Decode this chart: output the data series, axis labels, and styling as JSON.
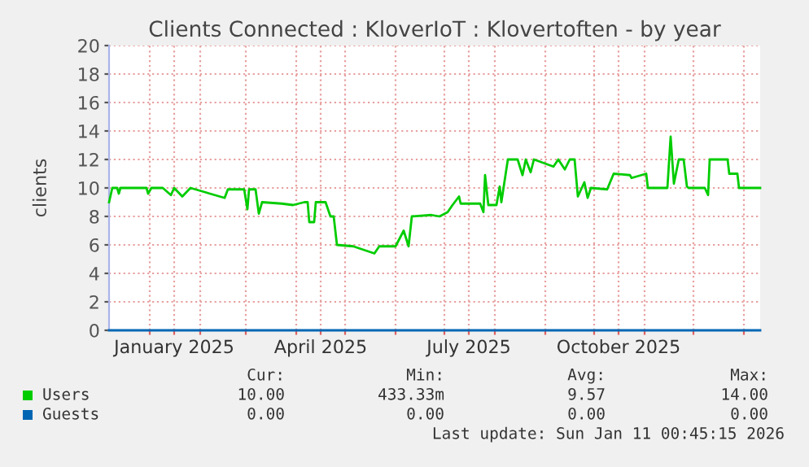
{
  "chart_data": {
    "type": "line",
    "title": "Clients Connected : KloverIoT : Klovertoften - by year",
    "ylabel": "clients",
    "x": [
      "2024-12-07",
      "2024-12-09",
      "2024-12-12",
      "2024-12-13",
      "2024-12-14",
      "2024-12-30",
      "2024-12-31",
      "2025-01-02",
      "2025-01-09",
      "2025-01-14",
      "2025-01-16",
      "2025-01-21",
      "2025-01-26",
      "2025-02-16",
      "2025-02-18",
      "2025-02-28",
      "2025-03-02",
      "2025-03-03",
      "2025-03-07",
      "2025-03-09",
      "2025-03-11",
      "2025-03-23",
      "2025-03-30",
      "2025-04-06",
      "2025-04-08",
      "2025-04-09",
      "2025-04-12",
      "2025-04-13",
      "2025-04-19",
      "2025-04-22",
      "2025-04-24",
      "2025-04-26",
      "2025-05-06",
      "2025-05-19",
      "2025-05-22",
      "2025-06-01",
      "2025-06-06",
      "2025-06-09",
      "2025-06-11",
      "2025-06-23",
      "2025-06-28",
      "2025-07-03",
      "2025-07-06",
      "2025-07-10",
      "2025-07-11",
      "2025-07-23",
      "2025-07-25",
      "2025-07-26",
      "2025-07-28",
      "2025-08-02",
      "2025-08-04",
      "2025-08-05",
      "2025-08-09",
      "2025-08-15",
      "2025-08-18",
      "2025-08-20",
      "2025-08-23",
      "2025-08-25",
      "2025-09-06",
      "2025-09-09",
      "2025-09-13",
      "2025-09-16",
      "2025-09-19",
      "2025-09-21",
      "2025-09-23",
      "2025-09-25",
      "2025-09-27",
      "2025-09-29",
      "2025-10-09",
      "2025-10-13",
      "2025-10-23",
      "2025-10-24",
      "2025-11-02",
      "2025-11-03",
      "2025-11-15",
      "2025-11-17",
      "2025-11-19",
      "2025-11-22",
      "2025-11-25",
      "2025-11-27",
      "2025-11-28",
      "2025-12-08",
      "2025-12-10",
      "2025-12-11",
      "2025-12-22",
      "2025-12-23",
      "2025-12-28",
      "2025-12-29",
      "2026-01-11"
    ],
    "series": [
      {
        "name": "Users",
        "color": "#00cc00",
        "values": [
          9.0,
          10,
          10,
          9.6,
          10,
          10,
          9.6,
          10,
          10,
          9.5,
          10,
          9.4,
          10,
          9.3,
          9.9,
          9.9,
          8.5,
          9.9,
          9.9,
          8.2,
          9,
          8.9,
          8.8,
          9,
          9,
          7.6,
          7.6,
          9,
          9,
          8,
          8,
          6,
          5.9,
          5.4,
          5.9,
          5.9,
          7,
          5.9,
          8,
          8.1,
          8,
          8.3,
          8.8,
          9.4,
          8.9,
          8.9,
          8.3,
          10.9,
          8.8,
          8.8,
          10.1,
          9,
          12,
          12,
          10.9,
          12,
          11.1,
          12,
          11.5,
          12,
          11.3,
          12,
          12,
          9.4,
          9.9,
          10.4,
          9.3,
          10,
          9.9,
          11,
          10.9,
          10.7,
          11,
          10,
          10,
          13.6,
          10.3,
          12,
          12,
          10.1,
          10,
          10,
          9.5,
          12,
          12,
          11,
          11,
          10,
          10
        ]
      },
      {
        "name": "Guests",
        "color": "#0066b3",
        "x": [
          "2024-12-07",
          "2026-01-11"
        ],
        "values": [
          0,
          0
        ]
      }
    ],
    "xlim": [
      "2024-12-07",
      "2026-01-11"
    ],
    "xticks": [
      {
        "value": "2025-01-01",
        "label": null
      },
      {
        "value": "2025-01-16",
        "label": "January 2025"
      },
      {
        "value": "2025-02-01",
        "label": null
      },
      {
        "value": "2025-03-01",
        "label": null
      },
      {
        "value": "2025-04-01",
        "label": null
      },
      {
        "value": "2025-04-16",
        "label": "April 2025"
      },
      {
        "value": "2025-05-01",
        "label": null
      },
      {
        "value": "2025-06-01",
        "label": null
      },
      {
        "value": "2025-07-01",
        "label": null
      },
      {
        "value": "2025-07-16",
        "label": "July 2025"
      },
      {
        "value": "2025-08-01",
        "label": null
      },
      {
        "value": "2025-09-01",
        "label": null
      },
      {
        "value": "2025-10-01",
        "label": null
      },
      {
        "value": "2025-10-16",
        "label": "October 2025"
      },
      {
        "value": "2025-11-01",
        "label": null
      },
      {
        "value": "2025-12-01",
        "label": null
      },
      {
        "value": "2026-01-01",
        "label": null
      }
    ],
    "ylim": [
      0,
      20
    ],
    "yticks": [
      0,
      2,
      4,
      6,
      8,
      10,
      12,
      14,
      16,
      18,
      20
    ],
    "grid": true,
    "legend": "bottom left",
    "annotations": [
      "Cur:",
      "Min:",
      "Avg:",
      "Max:",
      "10.00",
      "433.33m",
      "9.57",
      "14.00",
      "0.00",
      "0.00",
      "0.00",
      "0.00",
      "Last update: Sun Jan 11 00:45:15 2026"
    ]
  }
}
